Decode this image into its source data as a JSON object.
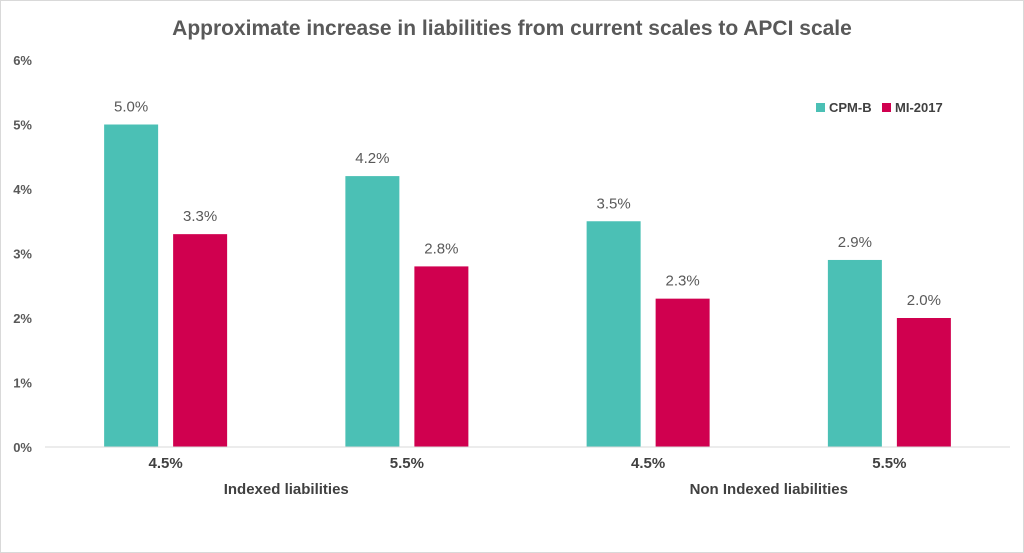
{
  "chart_data": {
    "type": "bar",
    "title": "Approximate increase in liabilities from current scales to APCI scale",
    "xlabel": "",
    "ylabel": "",
    "categories": [
      "4.5%",
      "5.5%",
      "4.5%",
      "5.5%"
    ],
    "groups": [
      {
        "label": "Indexed liabilities",
        "categories": [
          0,
          1
        ]
      },
      {
        "label": "Non Indexed liabilities",
        "categories": [
          2,
          3
        ]
      }
    ],
    "series": [
      {
        "name": "CPM-B",
        "color": "#4bc0b5",
        "values": [
          5.0,
          4.2,
          3.5,
          2.9
        ],
        "labels": [
          "5.0%",
          "4.2%",
          "3.5%",
          "2.9%"
        ]
      },
      {
        "name": "MI-2017",
        "color": "#d0004f",
        "values": [
          3.3,
          2.8,
          2.3,
          2.0
        ],
        "labels": [
          "3.3%",
          "2.8%",
          "2.3%",
          "2.0%"
        ]
      }
    ],
    "ylim": [
      0,
      6
    ],
    "yticks": [
      0,
      1,
      2,
      3,
      4,
      5,
      6
    ],
    "ytick_labels": [
      "0%",
      "1%",
      "2%",
      "3%",
      "4%",
      "5%",
      "6%"
    ],
    "grid": false,
    "legend": "top-right"
  }
}
